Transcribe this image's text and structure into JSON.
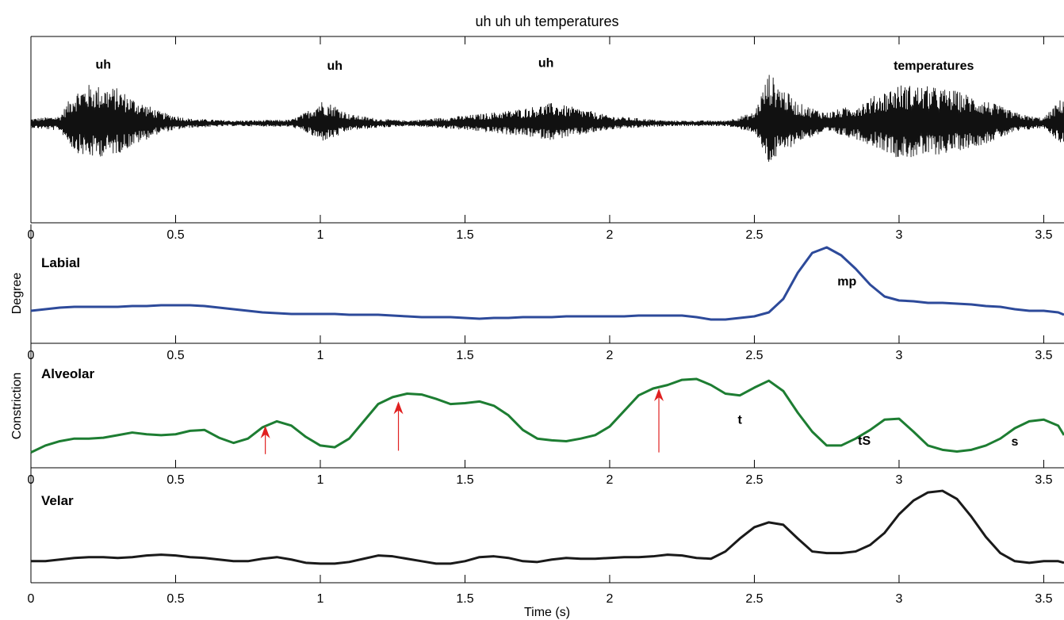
{
  "figure": {
    "title": "uh uh uh temperatures",
    "xlabel": "Time (s)",
    "ylabel_parts": [
      "Degree",
      "Constriction"
    ]
  },
  "chart_data": [
    {
      "type": "line",
      "id": "waveform",
      "xlim": [
        0,
        3.57
      ],
      "ylim": [
        -1,
        1
      ],
      "x_ticks": [
        0,
        0.5,
        1,
        1.5,
        2,
        2.5,
        3,
        3.5
      ],
      "x_tick_labels": [
        "0",
        "0.5",
        "1",
        "1.5",
        "2",
        "2.5",
        "3",
        "3.5"
      ],
      "annotations": [
        {
          "text": "uh",
          "x": 0.25,
          "y": 0.78
        },
        {
          "text": "uh",
          "x": 1.05,
          "y": 0.75
        },
        {
          "text": "uh",
          "x": 1.78,
          "y": 0.82
        },
        {
          "text": "temperatures",
          "x": 3.12,
          "y": 0.75
        }
      ],
      "envelope": {
        "x": [
          0,
          0.1,
          0.15,
          0.2,
          0.3,
          0.35,
          0.45,
          0.55,
          0.7,
          0.9,
          0.95,
          1.0,
          1.05,
          1.1,
          1.2,
          1.3,
          1.45,
          1.55,
          1.7,
          1.8,
          1.9,
          2.0,
          2.2,
          2.4,
          2.5,
          2.55,
          2.6,
          2.65,
          2.75,
          2.85,
          2.95,
          3.0,
          3.1,
          3.2,
          3.3,
          3.4,
          3.45,
          3.5,
          3.57
        ],
        "upper": [
          0.05,
          0.08,
          0.35,
          0.42,
          0.38,
          0.28,
          0.12,
          0.05,
          0.03,
          0.04,
          0.12,
          0.25,
          0.2,
          0.1,
          0.05,
          0.03,
          0.07,
          0.1,
          0.16,
          0.22,
          0.16,
          0.08,
          0.03,
          0.03,
          0.12,
          0.55,
          0.38,
          0.22,
          0.12,
          0.2,
          0.35,
          0.42,
          0.4,
          0.35,
          0.25,
          0.12,
          0.08,
          0.06,
          0.3
        ],
        "lower": [
          -0.05,
          -0.08,
          -0.3,
          -0.38,
          -0.33,
          -0.25,
          -0.1,
          -0.05,
          -0.03,
          -0.04,
          -0.1,
          -0.2,
          -0.16,
          -0.08,
          -0.05,
          -0.03,
          -0.06,
          -0.09,
          -0.14,
          -0.18,
          -0.13,
          -0.07,
          -0.03,
          -0.03,
          -0.1,
          -0.45,
          -0.32,
          -0.2,
          -0.1,
          -0.17,
          -0.3,
          -0.38,
          -0.36,
          -0.3,
          -0.22,
          -0.1,
          -0.07,
          -0.05,
          -0.25
        ]
      }
    },
    {
      "type": "line",
      "id": "labial",
      "label": "Labial",
      "color": "#2d4a9a",
      "xlim": [
        0,
        3.57
      ],
      "ylim": [
        0,
        1
      ],
      "x_ticks": [
        0,
        0.5,
        1,
        1.5,
        2,
        2.5,
        3,
        3.5
      ],
      "x_tick_labels": [
        "0",
        "0.5",
        "1",
        "1.5",
        "2",
        "2.5",
        "3",
        "3.5"
      ],
      "annotations": [
        {
          "text": "mp",
          "x": 2.82,
          "y": 0.52
        }
      ],
      "x": [
        0,
        0.05,
        0.1,
        0.15,
        0.2,
        0.25,
        0.3,
        0.35,
        0.4,
        0.45,
        0.5,
        0.55,
        0.6,
        0.65,
        0.7,
        0.75,
        0.8,
        0.85,
        0.9,
        0.95,
        1.0,
        1.05,
        1.1,
        1.15,
        1.2,
        1.25,
        1.3,
        1.35,
        1.4,
        1.45,
        1.5,
        1.55,
        1.6,
        1.65,
        1.7,
        1.75,
        1.8,
        1.85,
        1.9,
        1.95,
        2.0,
        2.05,
        2.1,
        2.15,
        2.2,
        2.25,
        2.3,
        2.35,
        2.4,
        2.45,
        2.5,
        2.55,
        2.6,
        2.65,
        2.7,
        2.75,
        2.8,
        2.85,
        2.9,
        2.95,
        3.0,
        3.05,
        3.1,
        3.15,
        3.2,
        3.25,
        3.3,
        3.35,
        3.4,
        3.45,
        3.5,
        3.55,
        3.57
      ],
      "y": [
        0.2,
        0.22,
        0.24,
        0.25,
        0.25,
        0.25,
        0.25,
        0.26,
        0.26,
        0.27,
        0.27,
        0.27,
        0.26,
        0.24,
        0.22,
        0.2,
        0.18,
        0.17,
        0.16,
        0.16,
        0.16,
        0.16,
        0.15,
        0.15,
        0.15,
        0.14,
        0.13,
        0.12,
        0.12,
        0.12,
        0.11,
        0.1,
        0.11,
        0.11,
        0.12,
        0.12,
        0.12,
        0.13,
        0.13,
        0.13,
        0.13,
        0.13,
        0.14,
        0.14,
        0.14,
        0.14,
        0.12,
        0.09,
        0.09,
        0.11,
        0.13,
        0.18,
        0.35,
        0.68,
        0.93,
        1.0,
        0.9,
        0.73,
        0.53,
        0.38,
        0.33,
        0.32,
        0.3,
        0.3,
        0.29,
        0.28,
        0.26,
        0.25,
        0.22,
        0.2,
        0.2,
        0.18,
        0.15
      ]
    },
    {
      "type": "line",
      "id": "alveolar",
      "label": "Alveolar",
      "color": "#1d7d32",
      "xlim": [
        0,
        3.57
      ],
      "ylim": [
        0,
        1
      ],
      "x_ticks": [
        0,
        0.5,
        1,
        1.5,
        2,
        2.5,
        3,
        3.5
      ],
      "x_tick_labels": [
        "0",
        "0.5",
        "1",
        "1.5",
        "2",
        "2.5",
        "3",
        "3.5"
      ],
      "annotations": [
        {
          "text": "t",
          "x": 2.45,
          "y": 0.37
        },
        {
          "text": "tS",
          "x": 2.88,
          "y": 0.13
        },
        {
          "text": "s",
          "x": 3.4,
          "y": 0.12
        }
      ],
      "arrows": [
        {
          "x": 0.81,
          "y_from": 0.02,
          "y_to": 0.35
        },
        {
          "x": 1.27,
          "y_from": 0.06,
          "y_to": 0.63
        },
        {
          "x": 2.17,
          "y_from": 0.04,
          "y_to": 0.78
        }
      ],
      "x": [
        0,
        0.05,
        0.1,
        0.15,
        0.2,
        0.25,
        0.3,
        0.35,
        0.4,
        0.45,
        0.5,
        0.55,
        0.6,
        0.65,
        0.7,
        0.75,
        0.8,
        0.85,
        0.9,
        0.95,
        1.0,
        1.05,
        1.1,
        1.15,
        1.2,
        1.25,
        1.3,
        1.35,
        1.4,
        1.45,
        1.5,
        1.55,
        1.6,
        1.65,
        1.7,
        1.75,
        1.8,
        1.85,
        1.9,
        1.95,
        2.0,
        2.05,
        2.1,
        2.15,
        2.2,
        2.25,
        2.3,
        2.35,
        2.4,
        2.45,
        2.5,
        2.55,
        2.6,
        2.65,
        2.7,
        2.75,
        2.8,
        2.85,
        2.9,
        2.95,
        3.0,
        3.05,
        3.1,
        3.15,
        3.2,
        3.25,
        3.3,
        3.35,
        3.4,
        3.45,
        3.5,
        3.55,
        3.57
      ],
      "y": [
        0.04,
        0.12,
        0.17,
        0.2,
        0.2,
        0.21,
        0.24,
        0.27,
        0.25,
        0.24,
        0.25,
        0.29,
        0.3,
        0.21,
        0.15,
        0.2,
        0.33,
        0.4,
        0.35,
        0.22,
        0.12,
        0.1,
        0.2,
        0.4,
        0.6,
        0.68,
        0.72,
        0.71,
        0.66,
        0.6,
        0.61,
        0.63,
        0.58,
        0.47,
        0.3,
        0.2,
        0.18,
        0.17,
        0.2,
        0.24,
        0.34,
        0.52,
        0.7,
        0.78,
        0.82,
        0.88,
        0.89,
        0.82,
        0.72,
        0.7,
        0.79,
        0.87,
        0.75,
        0.5,
        0.28,
        0.12,
        0.12,
        0.2,
        0.3,
        0.42,
        0.43,
        0.28,
        0.12,
        0.07,
        0.05,
        0.07,
        0.12,
        0.2,
        0.32,
        0.4,
        0.42,
        0.35,
        0.24
      ]
    },
    {
      "type": "line",
      "id": "velar",
      "label": "Velar",
      "color": "#1a1a1a",
      "xlim": [
        0,
        3.57
      ],
      "ylim": [
        0,
        1
      ],
      "x_ticks": [
        0,
        0.5,
        1,
        1.5,
        2,
        2.5,
        3,
        3.5
      ],
      "x_tick_labels": [
        "0",
        "0.5",
        "1",
        "1.5",
        "2",
        "2.5",
        "3",
        "3.5"
      ],
      "x": [
        0,
        0.05,
        0.1,
        0.15,
        0.2,
        0.25,
        0.3,
        0.35,
        0.4,
        0.45,
        0.5,
        0.55,
        0.6,
        0.65,
        0.7,
        0.75,
        0.8,
        0.85,
        0.9,
        0.95,
        1.0,
        1.05,
        1.1,
        1.15,
        1.2,
        1.25,
        1.3,
        1.35,
        1.4,
        1.45,
        1.5,
        1.55,
        1.6,
        1.65,
        1.7,
        1.75,
        1.8,
        1.85,
        1.9,
        1.95,
        2.0,
        2.05,
        2.1,
        2.15,
        2.2,
        2.25,
        2.3,
        2.35,
        2.4,
        2.45,
        2.5,
        2.55,
        2.6,
        2.65,
        2.7,
        2.75,
        2.8,
        2.85,
        2.9,
        2.95,
        3.0,
        3.05,
        3.1,
        3.15,
        3.2,
        3.25,
        3.3,
        3.35,
        3.4,
        3.45,
        3.5,
        3.55,
        3.57
      ],
      "y": [
        0.1,
        0.1,
        0.12,
        0.14,
        0.15,
        0.15,
        0.14,
        0.15,
        0.17,
        0.18,
        0.17,
        0.15,
        0.14,
        0.12,
        0.1,
        0.1,
        0.13,
        0.15,
        0.12,
        0.08,
        0.07,
        0.07,
        0.09,
        0.13,
        0.17,
        0.16,
        0.13,
        0.1,
        0.07,
        0.07,
        0.1,
        0.15,
        0.16,
        0.14,
        0.1,
        0.09,
        0.12,
        0.14,
        0.13,
        0.13,
        0.14,
        0.15,
        0.15,
        0.16,
        0.18,
        0.17,
        0.14,
        0.13,
        0.22,
        0.38,
        0.52,
        0.58,
        0.55,
        0.38,
        0.22,
        0.2,
        0.2,
        0.22,
        0.3,
        0.45,
        0.68,
        0.85,
        0.95,
        0.97,
        0.87,
        0.65,
        0.4,
        0.2,
        0.1,
        0.08,
        0.1,
        0.1,
        0.08
      ]
    }
  ]
}
